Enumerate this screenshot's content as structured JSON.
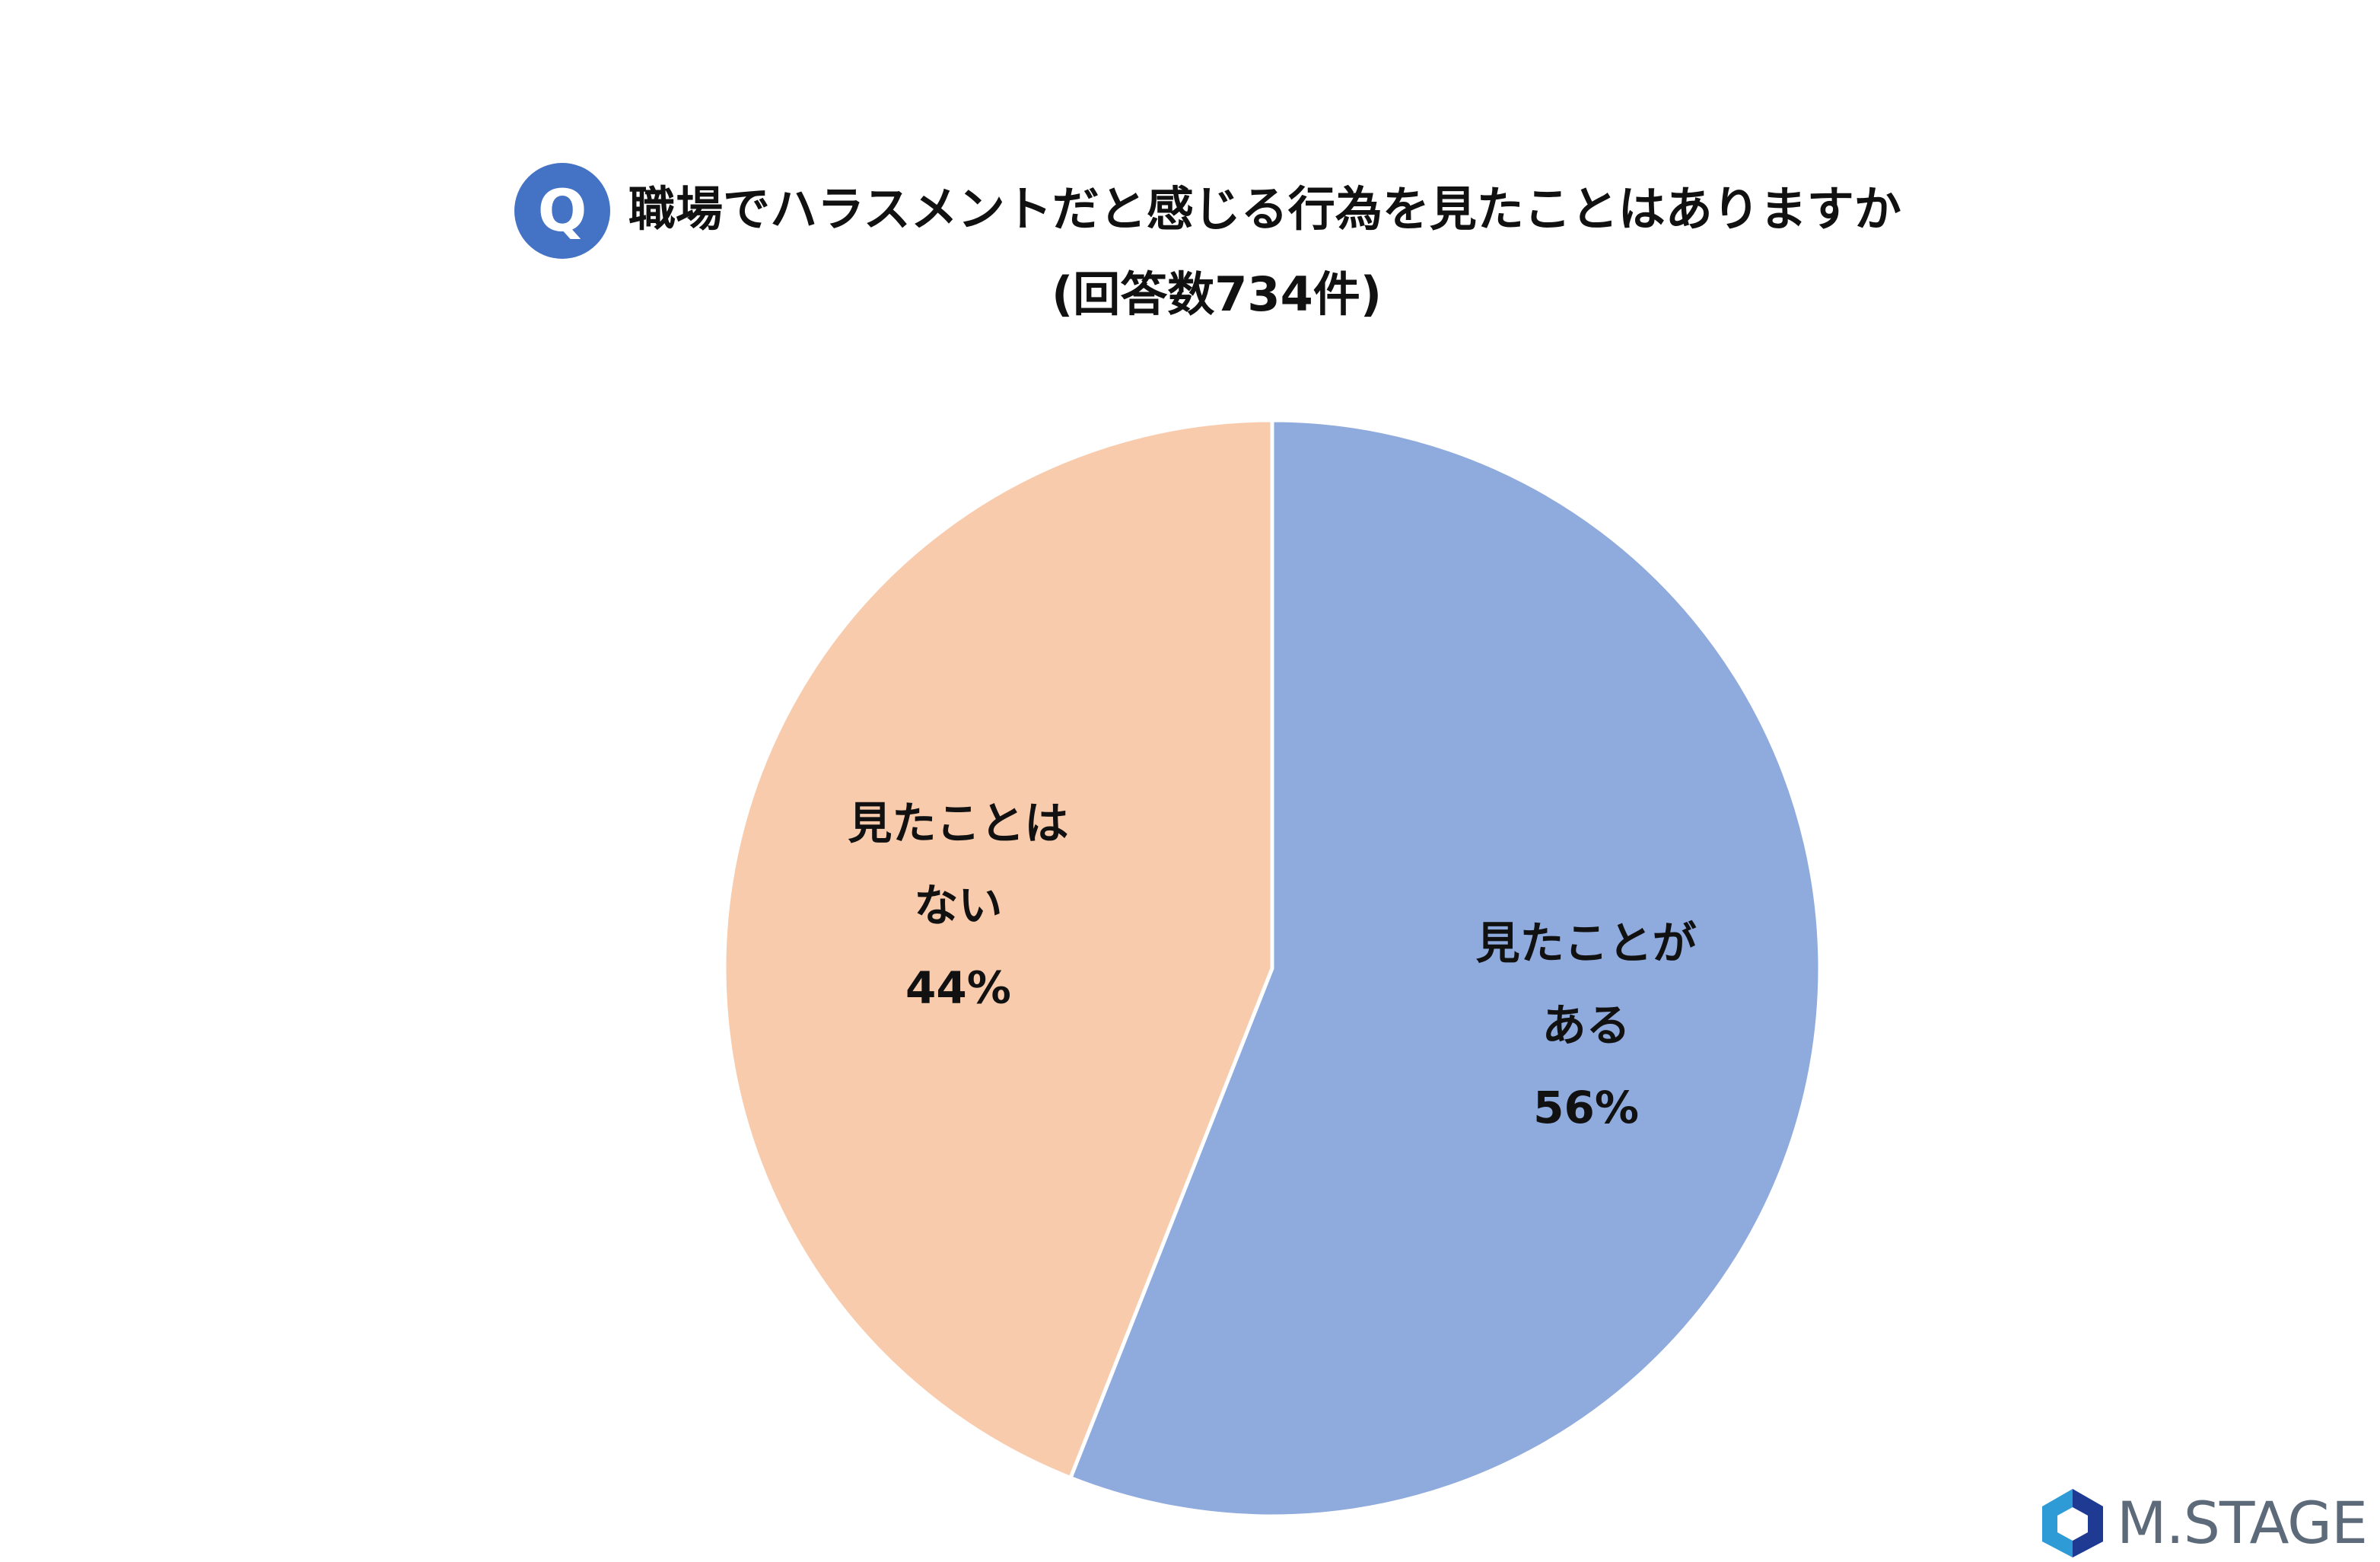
{
  "title": {
    "badge": "Q",
    "question": "職場でハラスメントだと感じる行為を見たことはありますか",
    "subtitle": "(回答数734件)"
  },
  "chart_data": {
    "type": "pie",
    "start_angle": "12 o'clock",
    "direction": "clockwise",
    "slices": [
      {
        "label_lines": [
          "見たことが",
          "ある"
        ],
        "value": 56,
        "value_label": "56%",
        "color": "#8faadc"
      },
      {
        "label_lines": [
          "見たことは",
          "ない"
        ],
        "value": 44,
        "value_label": "44%",
        "color": "#f8cbad"
      }
    ]
  },
  "logo": {
    "text": "M.STAGE",
    "icon": "hexagon-logo-icon",
    "colors": {
      "dark": "#1f3a93",
      "light": "#2e9bd6",
      "text": "#5d6a7a"
    }
  }
}
